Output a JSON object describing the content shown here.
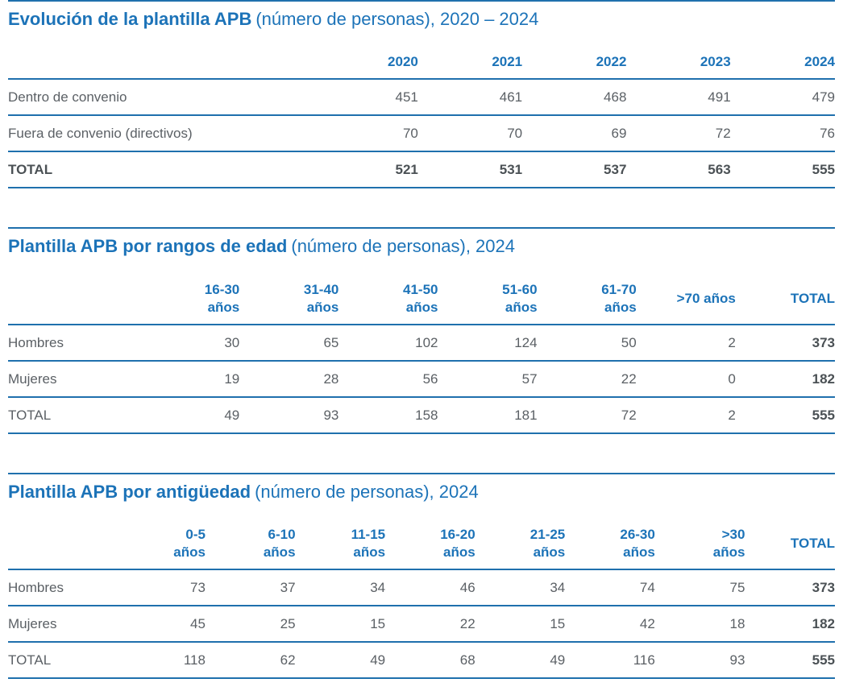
{
  "colors": {
    "accent_blue": "#1c73b8",
    "rule_blue": "#1f70ad",
    "body_text_gray": "#5b6065",
    "total_text_gray": "#4b5155"
  },
  "sections": [
    {
      "id": "evolucion-plantilla",
      "title_bold": "Evolución de la plantilla APB",
      "title_rest": "(número de personas), 2020 – 2024",
      "table": {
        "label_col_pct": 37,
        "bold_last_column": false,
        "columns": [
          "2020",
          "2021",
          "2022",
          "2023",
          "2024"
        ],
        "rows": [
          {
            "label": "Dentro de convenio",
            "values": [
              "451",
              "461",
              "468",
              "491",
              "479"
            ],
            "bold_row": false
          },
          {
            "label": "Fuera de convenio (directivos)",
            "values": [
              "70",
              "70",
              "69",
              "72",
              "76"
            ],
            "bold_row": false
          },
          {
            "label": "TOTAL",
            "values": [
              "521",
              "531",
              "537",
              "563",
              "555"
            ],
            "bold_row": true
          }
        ]
      }
    },
    {
      "id": "plantilla-rangos-edad",
      "title_bold": "Plantilla APB por rangos de edad",
      "title_rest": "(número de personas), 2024",
      "table": {
        "label_col_pct": 16,
        "bold_last_column": true,
        "columns": [
          "16-30\naños",
          "31-40\naños",
          "41-50\naños",
          "51-60\naños",
          "61-70\naños",
          ">70 años",
          "TOTAL"
        ],
        "rows": [
          {
            "label": "Hombres",
            "values": [
              "30",
              "65",
              "102",
              "124",
              "50",
              "2",
              "373"
            ],
            "bold_row": false
          },
          {
            "label": "Mujeres",
            "values": [
              "19",
              "28",
              "56",
              "57",
              "22",
              "0",
              "182"
            ],
            "bold_row": false
          },
          {
            "label": "TOTAL",
            "values": [
              "49",
              "93",
              "158",
              "181",
              "72",
              "2",
              "555"
            ],
            "bold_row": false
          }
        ]
      }
    },
    {
      "id": "plantilla-antiguedad",
      "title_bold": "Plantilla APB por antigüedad",
      "title_rest": "(número de personas), 2024",
      "table": {
        "label_col_pct": 13,
        "bold_last_column": true,
        "columns": [
          "0-5\naños",
          "6-10\naños",
          "11-15\naños",
          "16-20\naños",
          "21-25\naños",
          "26-30\naños",
          ">30\naños",
          "TOTAL"
        ],
        "rows": [
          {
            "label": "Hombres",
            "values": [
              "73",
              "37",
              "34",
              "46",
              "34",
              "74",
              "75",
              "373"
            ],
            "bold_row": false
          },
          {
            "label": "Mujeres",
            "values": [
              "45",
              "25",
              "15",
              "22",
              "15",
              "42",
              "18",
              "182"
            ],
            "bold_row": false
          },
          {
            "label": "TOTAL",
            "values": [
              "118",
              "62",
              "49",
              "68",
              "49",
              "116",
              "93",
              "555"
            ],
            "bold_row": false
          }
        ]
      }
    }
  ]
}
